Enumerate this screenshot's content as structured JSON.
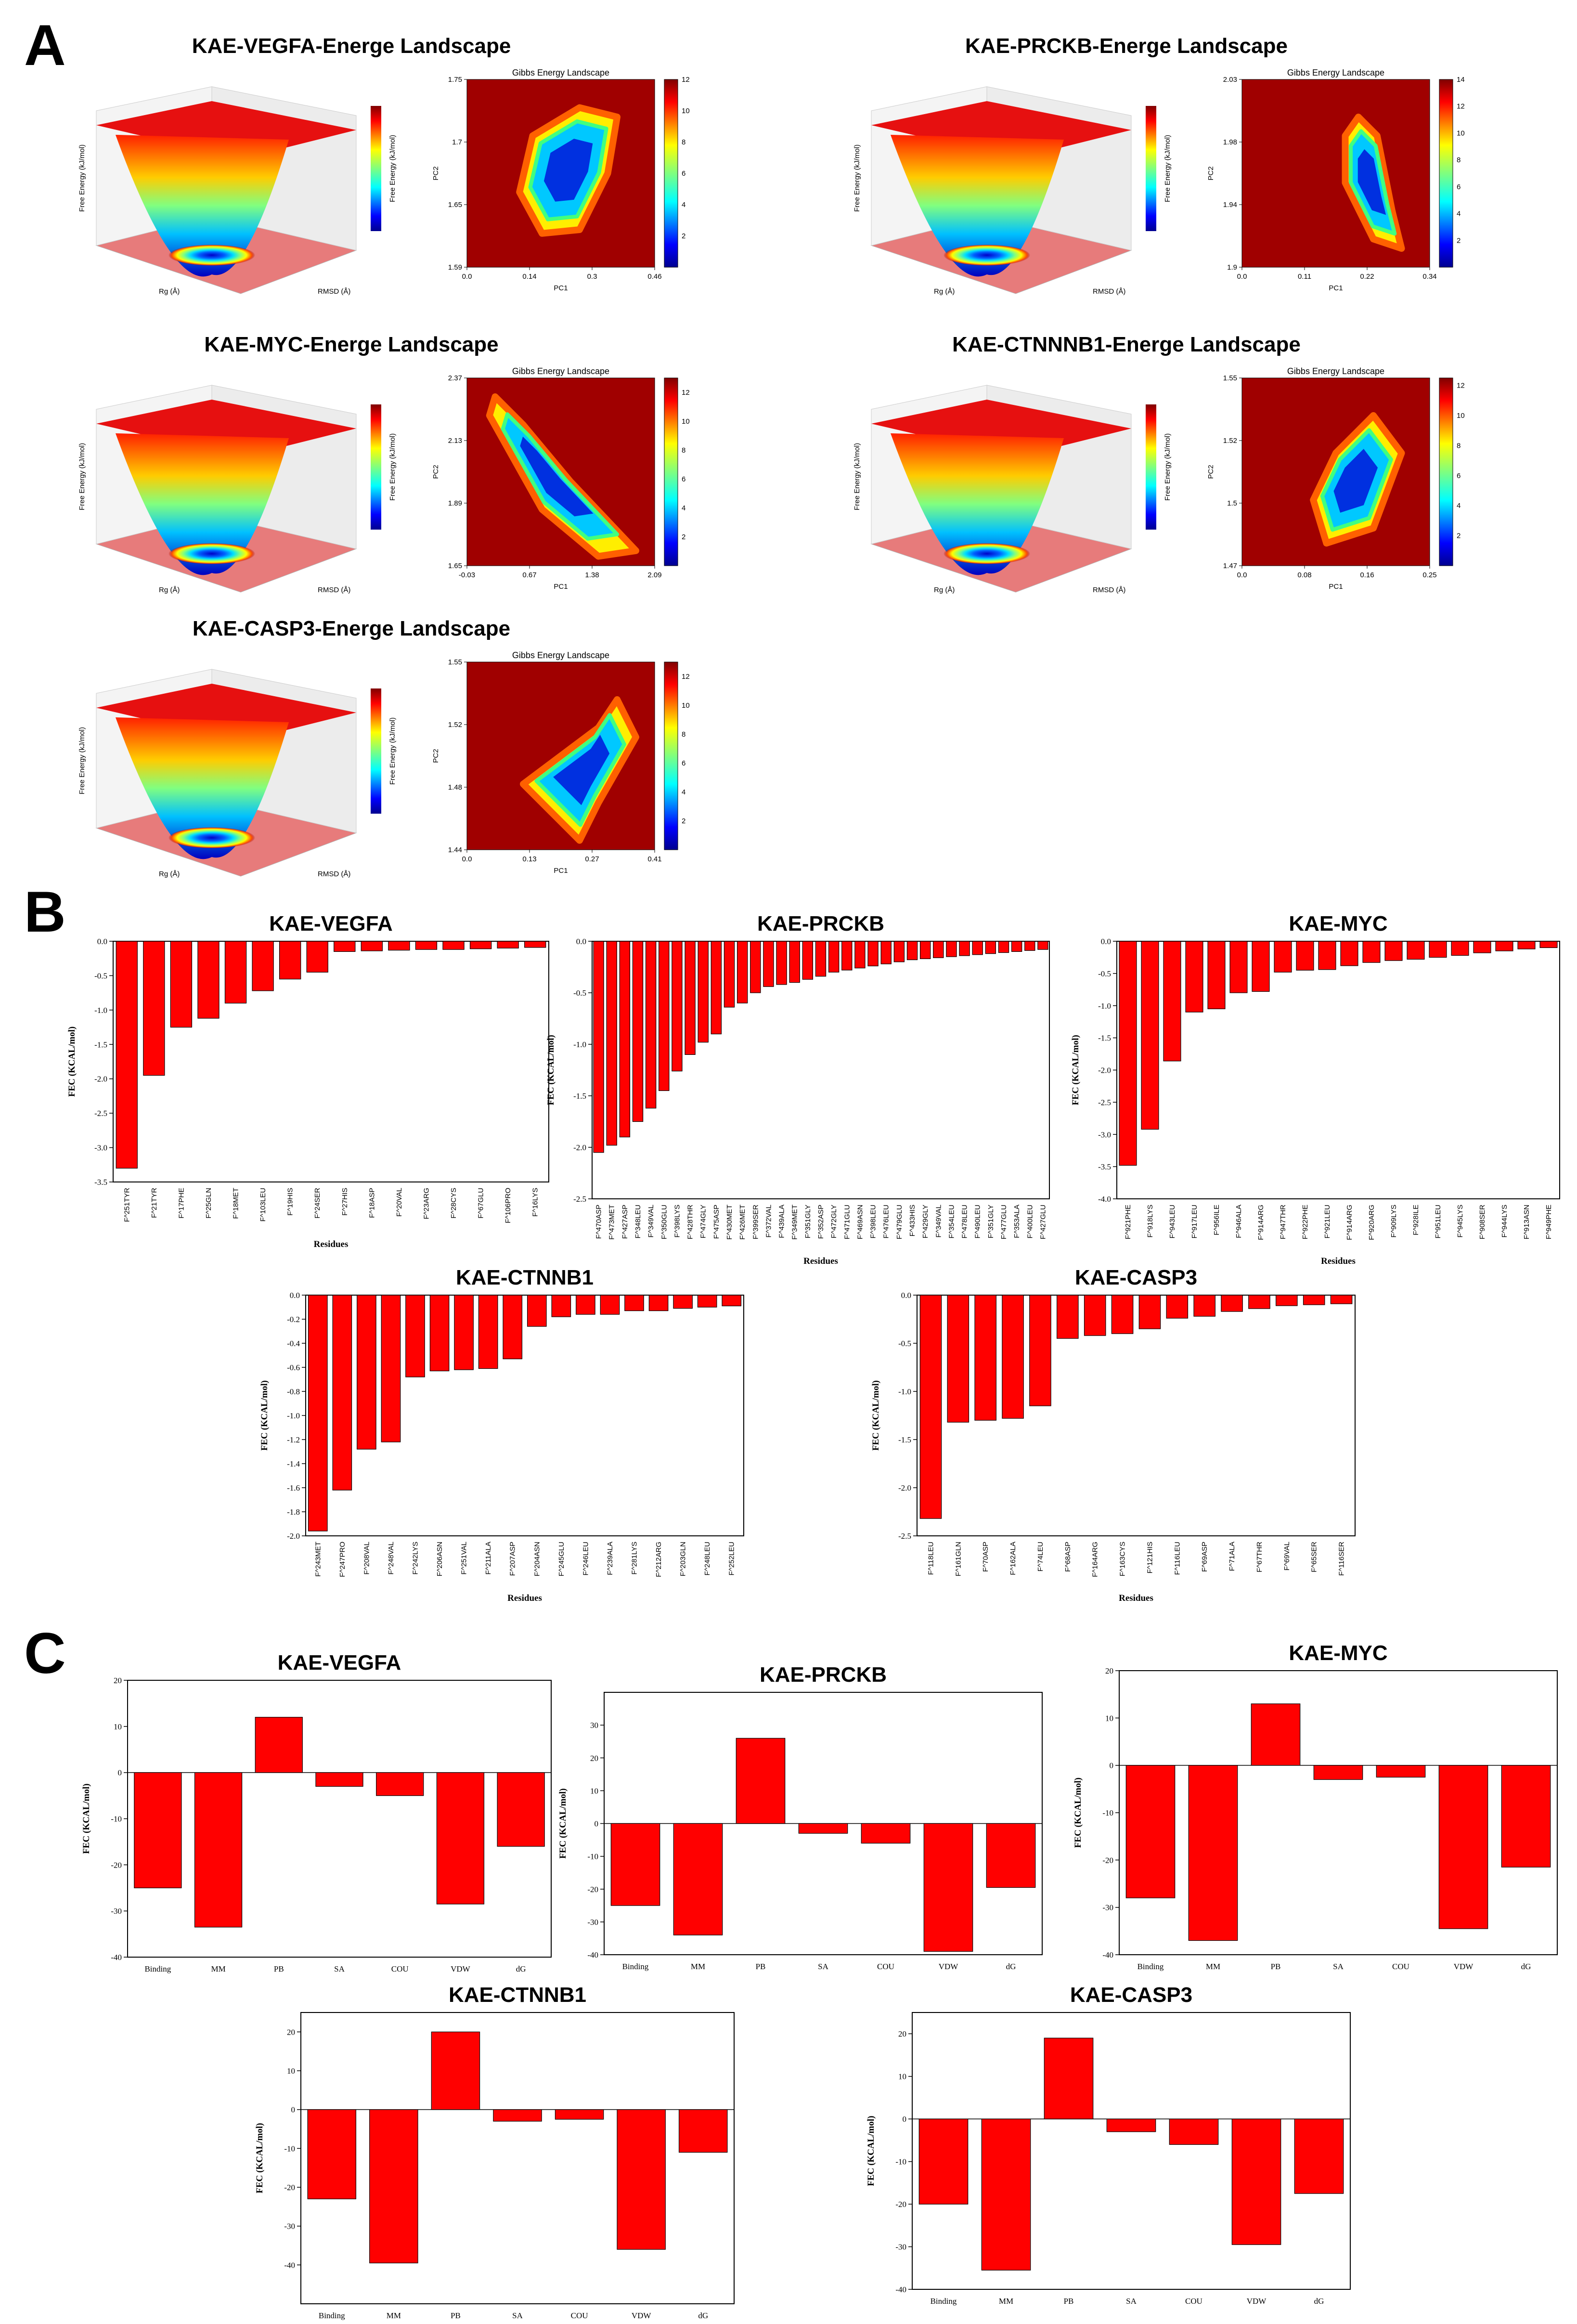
{
  "panels": {
    "A": "A",
    "B": "B",
    "C": "C"
  },
  "landscapes": [
    {
      "title": "KAE-VEGFA-Energe Landscape",
      "heatmap_title": "Gibbs Energy Landscape",
      "xticks": [
        "0.0",
        "0.14",
        "0.3",
        "0.46"
      ],
      "yticks": [
        "1.59",
        "1.65",
        "1.7",
        "1.75"
      ],
      "cbar_ticks": [
        "2",
        "4",
        "6",
        "8",
        "10",
        "12"
      ],
      "cmax": 12,
      "surf_xaxis": "Rg (Å)",
      "surf_yaxis": "RMSD (Å)",
      "surf_zaxis": "Free Energy (kJ/mol)",
      "cbar_label": "Free Energy (kJ/mol)",
      "xlabel": "PC1",
      "ylabel": "PC2"
    },
    {
      "title": "KAE-PRCKB-Energe Landscape",
      "heatmap_title": "Gibbs Energy Landscape",
      "xticks": [
        "0.0",
        "0.11",
        "0.22",
        "0.34"
      ],
      "yticks": [
        "1.9",
        "1.94",
        "1.98",
        "2.03"
      ],
      "cbar_ticks": [
        "2",
        "4",
        "6",
        "8",
        "10",
        "12",
        "14"
      ],
      "cmax": 14,
      "surf_xaxis": "Rg (Å)",
      "surf_yaxis": "RMSD (Å)",
      "surf_zaxis": "Free Energy (kJ/mol)",
      "cbar_label": "Free Energy (kJ/mol)",
      "xlabel": "PC1",
      "ylabel": "PC2"
    },
    {
      "title": "KAE-MYC-Energe Landscape",
      "heatmap_title": "Gibbs Energy Landscape",
      "xticks": [
        "-0.03",
        "0.67",
        "1.38",
        "2.09"
      ],
      "yticks": [
        "1.65",
        "1.89",
        "2.13",
        "2.37"
      ],
      "cbar_ticks": [
        "2",
        "4",
        "6",
        "8",
        "10",
        "12"
      ],
      "cmax": 13,
      "surf_xaxis": "Rg (Å)",
      "surf_yaxis": "RMSD (Å)",
      "surf_zaxis": "Free Energy (kJ/mol)",
      "cbar_label": "Free Energy (kJ/mol)",
      "xlabel": "PC1",
      "ylabel": "PC2"
    },
    {
      "title": "KAE-CTNNNB1-Energe Landscape",
      "heatmap_title": "Gibbs Energy Landscape",
      "xticks": [
        "0.0",
        "0.08",
        "0.16",
        "0.25"
      ],
      "yticks": [
        "1.47",
        "1.5",
        "1.52",
        "1.55"
      ],
      "cbar_ticks": [
        "2",
        "4",
        "6",
        "8",
        "10",
        "12"
      ],
      "cmax": 12.5,
      "surf_xaxis": "Rg (Å)",
      "surf_yaxis": "RMSD (Å)",
      "surf_zaxis": "Free Energy (kJ/mol)",
      "cbar_label": "Free Energy (kJ/mol)",
      "xlabel": "PC1",
      "ylabel": "PC2"
    },
    {
      "title": "KAE-CASP3-Energe Landscape",
      "heatmap_title": "Gibbs Energy Landscape",
      "xticks": [
        "0.0",
        "0.13",
        "0.27",
        "0.41"
      ],
      "yticks": [
        "1.44",
        "1.48",
        "1.52",
        "1.55"
      ],
      "cbar_ticks": [
        "2",
        "4",
        "6",
        "8",
        "10",
        "12"
      ],
      "cmax": 13,
      "surf_xaxis": "Rg (Å)",
      "surf_yaxis": "RMSD (Å)",
      "surf_zaxis": "Free Energy (kJ/mol)",
      "cbar_label": "Free Energy (kJ/mol)",
      "xlabel": "PC1",
      "ylabel": "PC2"
    }
  ],
  "chart_data": [
    {
      "type": "bar",
      "title": "KAE-VEGFA",
      "xlabel": "Residues",
      "ylabel": "FEC (KCAL/mol)",
      "ylim": [
        -3.5,
        0
      ],
      "yticks": [
        0,
        -0.5,
        -1,
        -1.5,
        -2,
        -2.5,
        -3,
        -3.5
      ],
      "categories": [
        "F^251TYR",
        "F^21TYR",
        "F^17PHE",
        "F^25GLN",
        "F^18MET",
        "F^103LEU",
        "F^19HIS",
        "F^24SER",
        "F^27HIS",
        "F^18ASP",
        "F^20VAL",
        "F^23ARG",
        "F^28CYS",
        "F^67GLU",
        "F^106PRO",
        "F^16LYS"
      ],
      "values": [
        -3.3,
        -1.95,
        -1.25,
        -1.12,
        -0.9,
        -0.72,
        -0.55,
        -0.45,
        -0.15,
        -0.14,
        -0.13,
        -0.12,
        -0.12,
        -0.11,
        -0.1,
        -0.09
      ]
    },
    {
      "type": "bar",
      "title": "KAE-PRCKB",
      "xlabel": "Residues",
      "ylabel": "FEC (KCAL/mol)",
      "ylim": [
        -2.5,
        0
      ],
      "yticks": [
        0,
        -0.5,
        -1,
        -1.5,
        -2,
        -2.5
      ],
      "categories": [
        "F^470ASP",
        "F^473MET",
        "F^427ASP",
        "F^348LEU",
        "F^349VAL",
        "F^350GLU",
        "F^398LYS",
        "F^428THR",
        "F^474GLY",
        "F^475ASP",
        "F^430MET",
        "F^426MET",
        "F^399SER",
        "F^372VAL",
        "F^439ALA",
        "F^349MET",
        "F^351GLY",
        "F^352ASP",
        "F^472GLY",
        "F^471GLU",
        "F^469ASN",
        "F^398LEU",
        "F^476LEU",
        "F^479GLU",
        "F^433HIS",
        "F^429GLY",
        "F^349VAL",
        "F^354LEU",
        "F^478LEU",
        "F^490LEU",
        "F^351GLY",
        "F^477GLU",
        "F^353ALA",
        "F^400LEU",
        "F^427GLU"
      ],
      "values": [
        -2.05,
        -1.98,
        -1.9,
        -1.75,
        -1.62,
        -1.45,
        -1.26,
        -1.1,
        -0.98,
        -0.9,
        -0.64,
        -0.6,
        -0.5,
        -0.44,
        -0.42,
        -0.4,
        -0.37,
        -0.34,
        -0.3,
        -0.28,
        -0.26,
        -0.24,
        -0.22,
        -0.2,
        -0.18,
        -0.17,
        -0.16,
        -0.15,
        -0.14,
        -0.13,
        -0.12,
        -0.11,
        -0.1,
        -0.09,
        -0.08
      ]
    },
    {
      "type": "bar",
      "title": "KAE-MYC",
      "xlabel": "Residues",
      "ylabel": "FEC (KCAL/mol)",
      "ylim": [
        -4,
        0
      ],
      "yticks": [
        0,
        -0.5,
        -1,
        -1.5,
        -2,
        -2.5,
        -3,
        -3.5,
        -4
      ],
      "categories": [
        "F^921PHE",
        "F^918LYS",
        "F^943LEU",
        "F^917LEU",
        "F^956ILE",
        "F^946ALA",
        "F^914ARG",
        "F^947THR",
        "F^922PHE",
        "F^921LEU",
        "F^914ARG",
        "F^920ARG",
        "F^909LYS",
        "F^928ILE",
        "F^951LEU",
        "F^945LYS",
        "F^908SER",
        "F^944LYS",
        "F^913ASN",
        "F^949PHE"
      ],
      "values": [
        -3.48,
        -2.92,
        -1.86,
        -1.1,
        -1.05,
        -0.8,
        -0.78,
        -0.48,
        -0.45,
        -0.44,
        -0.38,
        -0.33,
        -0.3,
        -0.28,
        -0.25,
        -0.22,
        -0.18,
        -0.15,
        -0.12,
        -0.1
      ]
    },
    {
      "type": "bar",
      "title": "KAE-CTNNB1",
      "xlabel": "Residues",
      "ylabel": "FEC (KCAL/mol)",
      "ylim": [
        -2,
        0
      ],
      "yticks": [
        0,
        -0.2,
        -0.4,
        -0.6,
        -0.8,
        -1,
        -1.2,
        -1.4,
        -1.6,
        -1.8,
        -2
      ],
      "categories": [
        "F^243MET",
        "F^247PRO",
        "F^208VAL",
        "F^248VAL",
        "F^242LYS",
        "F^206ASN",
        "F^251VAL",
        "F^211ALA",
        "F^207ASP",
        "F^204ASN",
        "F^245GLU",
        "F^246LEU",
        "F^239ALA",
        "F^281LYS",
        "F^212ARG",
        "F^203GLN",
        "F^248LEU",
        "F^252LEU"
      ],
      "values": [
        -1.96,
        -1.62,
        -1.28,
        -1.22,
        -0.68,
        -0.63,
        -0.62,
        -0.61,
        -0.53,
        -0.26,
        -0.18,
        -0.16,
        -0.16,
        -0.13,
        -0.13,
        -0.11,
        -0.1,
        -0.09
      ]
    },
    {
      "type": "bar",
      "title": "KAE-CASP3",
      "xlabel": "Residues",
      "ylabel": "FEC (KCAL/mol)",
      "ylim": [
        -2.5,
        0
      ],
      "yticks": [
        0,
        -0.5,
        -1,
        -1.5,
        -2,
        -2.5
      ],
      "categories": [
        "F^118LEU",
        "F^161GLN",
        "F^70ASP",
        "F^162ALA",
        "F^74LEU",
        "F^68ASP",
        "F^164ARG",
        "F^163CYS",
        "F^121HIS",
        "F^116LEU",
        "F^69ASP",
        "F^71ALA",
        "F^67THR",
        "F^69VAL",
        "F^65SER",
        "F^116SER"
      ],
      "values": [
        -2.32,
        -1.32,
        -1.3,
        -1.28,
        -1.15,
        -0.45,
        -0.42,
        -0.4,
        -0.35,
        -0.24,
        -0.22,
        -0.17,
        -0.14,
        -0.11,
        -0.1,
        -0.09
      ]
    },
    {
      "type": "bar",
      "title": "KAE-VEGFA",
      "ylabel": "FEC (KCAL/mol)",
      "ylim": [
        -40,
        20
      ],
      "yticks": [
        20,
        10,
        0,
        -10,
        -20,
        -30,
        -40
      ],
      "categories": [
        "Binding",
        "MM",
        "PB",
        "SA",
        "COU",
        "VDW",
        "dG"
      ],
      "values": [
        -25,
        -33.5,
        12,
        -3,
        -5,
        -28.5,
        -16
      ]
    },
    {
      "type": "bar",
      "title": "KAE-PRCKB",
      "ylabel": "FEC (KCAL/mol)",
      "ylim": [
        -40,
        40
      ],
      "yticks": [
        30,
        20,
        10,
        0,
        -10,
        -20,
        -30,
        -40
      ],
      "categories": [
        "Binding",
        "MM",
        "PB",
        "SA",
        "COU",
        "VDW",
        "dG"
      ],
      "values": [
        -25,
        -34,
        26,
        -3,
        -6,
        -39,
        -19.5
      ]
    },
    {
      "type": "bar",
      "title": "KAE-MYC",
      "ylabel": "FEC (KCAL/mol)",
      "ylim": [
        -40,
        20
      ],
      "yticks": [
        20,
        10,
        0,
        -10,
        -20,
        -30,
        -40
      ],
      "categories": [
        "Binding",
        "MM",
        "PB",
        "SA",
        "COU",
        "VDW",
        "dG"
      ],
      "values": [
        -28,
        -37,
        13,
        -3,
        -2.5,
        -34.5,
        -21.5
      ]
    },
    {
      "type": "bar",
      "title": "KAE-CTNNB1",
      "ylabel": "FEC (KCAL/mol)",
      "ylim": [
        -50,
        25
      ],
      "yticks": [
        20,
        10,
        0,
        -10,
        -20,
        -30,
        -40
      ],
      "categories": [
        "Binding",
        "MM",
        "PB",
        "SA",
        "COU",
        "VDW",
        "dG"
      ],
      "values": [
        -23,
        -39.5,
        20,
        -3,
        -2.5,
        -36,
        -11
      ]
    },
    {
      "type": "bar",
      "title": "KAE-CASP3",
      "ylabel": "FEC (KCAL/mol)",
      "ylim": [
        -40,
        25
      ],
      "yticks": [
        20,
        10,
        0,
        -10,
        -20,
        -30,
        -40
      ],
      "categories": [
        "Binding",
        "MM",
        "PB",
        "SA",
        "COU",
        "VDW",
        "dG"
      ],
      "values": [
        -20,
        -35.5,
        19,
        -3,
        -6,
        -29.5,
        -17.5
      ]
    }
  ]
}
